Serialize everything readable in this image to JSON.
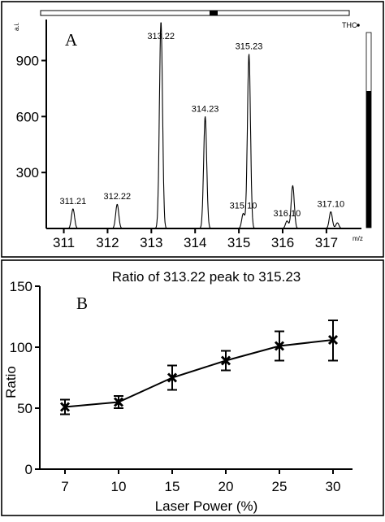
{
  "chart_data": [
    {
      "type": "line",
      "panel_label": "A",
      "ylabel": "a.i.",
      "legend": "THC",
      "xlabel": "m/z",
      "x_ticks": [
        311,
        312,
        313,
        314,
        315,
        316,
        317
      ],
      "y_ticks": [
        300,
        600,
        900
      ],
      "xlim": [
        310.6,
        317.8
      ],
      "ylim": [
        0,
        1120
      ],
      "peaks": [
        {
          "mz": 311.21,
          "intensity": 105,
          "label": "311.21"
        },
        {
          "mz": 312.22,
          "intensity": 130,
          "label": "312.22"
        },
        {
          "mz": 313.22,
          "intensity": 1110,
          "label": "313.22"
        },
        {
          "mz": 314.23,
          "intensity": 600,
          "label": "314.23"
        },
        {
          "mz": 315.1,
          "intensity": 80,
          "label": "315.10"
        },
        {
          "mz": 315.23,
          "intensity": 935,
          "label": "315.23"
        },
        {
          "mz": 316.1,
          "intensity": 40,
          "label": "316.10"
        },
        {
          "mz": 316.23,
          "intensity": 230,
          "label": ""
        },
        {
          "mz": 317.1,
          "intensity": 90,
          "label": "317.10"
        },
        {
          "mz": 317.25,
          "intensity": 30,
          "label": ""
        }
      ]
    },
    {
      "type": "line",
      "panel_label": "B",
      "title": "Ratio of 313.22 peak to 315.23",
      "xlabel": "Laser Power (%)",
      "ylabel": "Ratio",
      "categories": [
        "7",
        "10",
        "15",
        "20",
        "25",
        "30"
      ],
      "values": [
        51,
        55,
        75,
        89,
        101,
        106
      ],
      "error_low": [
        45,
        50,
        65,
        81,
        89,
        89
      ],
      "error_high": [
        57,
        60,
        85,
        97,
        113,
        122
      ],
      "y_ticks": [
        0,
        50,
        100,
        150
      ],
      "ylim": [
        0,
        150
      ],
      "grid": false
    }
  ]
}
